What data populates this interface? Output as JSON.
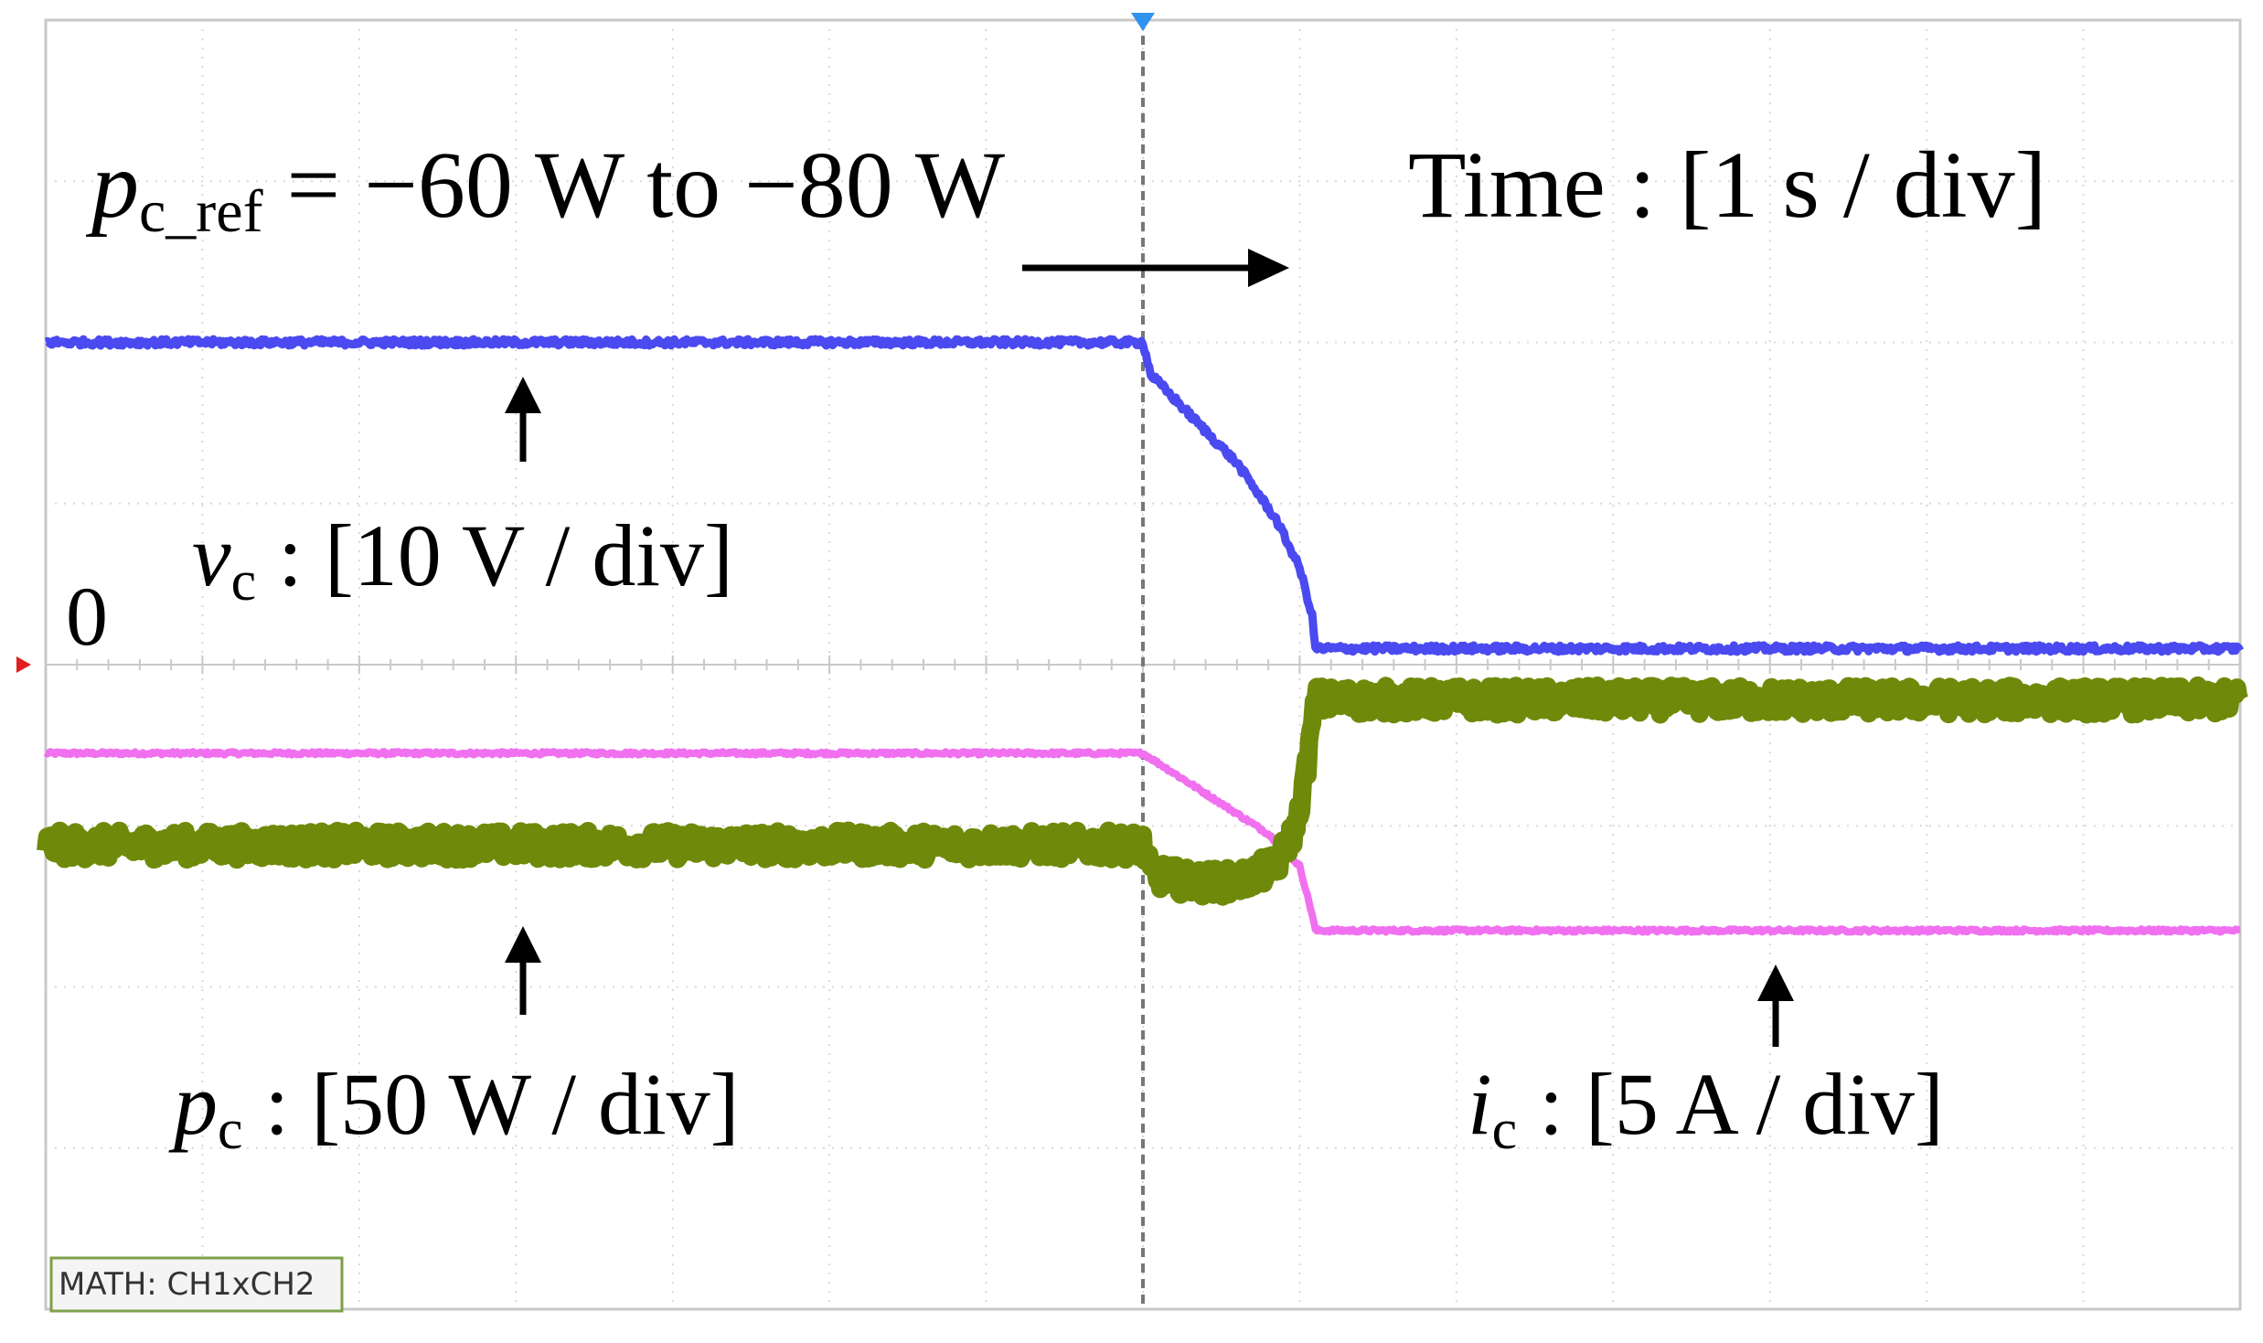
{
  "chart_data": {
    "type": "line",
    "title": "",
    "xlabel": "",
    "ylabel": "",
    "grid": true,
    "divisions": {
      "x": 14,
      "y": 8
    },
    "xlim": [
      0,
      14
    ],
    "ylim": [
      -4,
      4
    ],
    "time_per_div": "Time : [1 s / div]",
    "trigger_div": 7.0,
    "zero_label": "0",
    "math_label": "MATH: CH1xCH2",
    "annotation": {
      "p_symbol": "p",
      "sub": "c_ref",
      "text": "= −60 W to −80 W"
    },
    "time_label": "Time : [1 s / div]",
    "series": [
      {
        "name": "v_c",
        "color": "#4a4af0",
        "scale": "10 V / div",
        "label_symbol": "v",
        "label_sub": "c",
        "label_text": ": [10 V / div]",
        "x": [
          0,
          7.0,
          7.05,
          7.3,
          7.6,
          7.85,
          8.0,
          8.08,
          8.1,
          14
        ],
        "y": [
          2.0,
          2.0,
          1.8,
          1.55,
          1.25,
          0.9,
          0.6,
          0.3,
          0.1,
          0.1
        ],
        "noise": 0.02
      },
      {
        "name": "p_c",
        "color": "#f070f0",
        "scale": "50 W / div",
        "label_symbol": "p",
        "label_sub": "c",
        "label_text": ": [50 W / div]",
        "x": [
          0,
          7.0,
          7.4,
          7.8,
          8.0,
          8.08,
          8.1,
          14
        ],
        "y": [
          -0.55,
          -0.55,
          -0.8,
          -1.05,
          -1.25,
          -1.55,
          -1.65,
          -1.65
        ],
        "noise": 0.01
      },
      {
        "name": "i_c",
        "color": "#6f8a0a",
        "scale": "5 A / div",
        "label_symbol": "i",
        "label_sub": "c",
        "label_text": ": [5 A / div]",
        "x": [
          0,
          7.0,
          7.05,
          7.3,
          7.6,
          7.85,
          7.98,
          8.05,
          8.1,
          14
        ],
        "y": [
          -1.12,
          -1.12,
          -1.3,
          -1.35,
          -1.35,
          -1.25,
          -1.0,
          -0.6,
          -0.22,
          -0.22
        ],
        "noise": 0.09
      }
    ]
  }
}
